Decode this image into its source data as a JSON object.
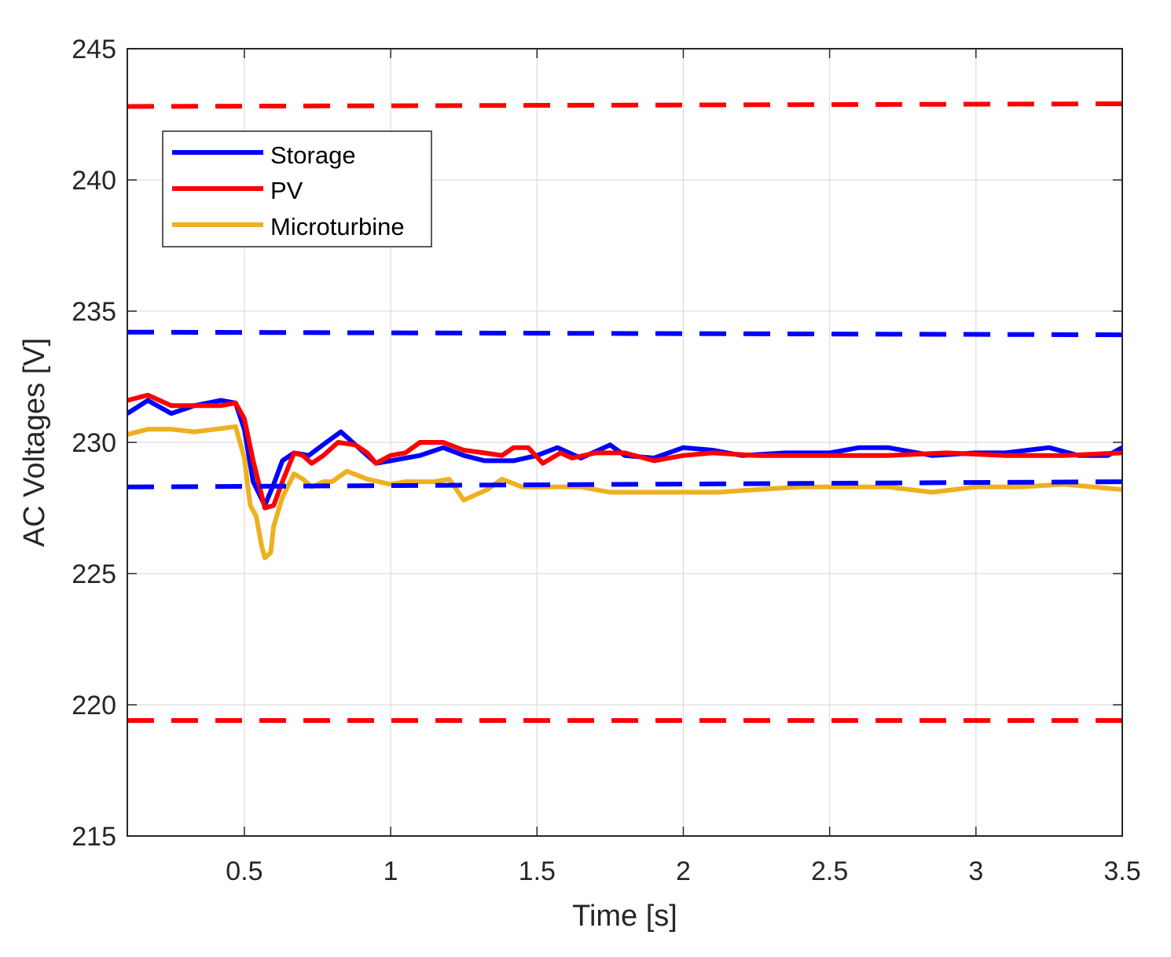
{
  "chart_data": {
    "type": "line",
    "title": "",
    "xlabel": "Time [s]",
    "ylabel": "AC Voltages [V]",
    "xlim": [
      0.1,
      3.5
    ],
    "ylim": [
      215,
      245
    ],
    "xticks": [
      0.5,
      1,
      1.5,
      2,
      2.5,
      3,
      3.5
    ],
    "xtick_labels": [
      "0.5",
      "1",
      "1.5",
      "2",
      "2.5",
      "3",
      "3.5"
    ],
    "yticks": [
      215,
      220,
      225,
      230,
      235,
      240,
      245
    ],
    "ytick_labels": [
      "215",
      "220",
      "225",
      "230",
      "235",
      "240",
      "245"
    ],
    "grid": true,
    "legend_position": "top-left",
    "series": [
      {
        "name": "Storage",
        "color": "#0000ff",
        "style": "solid",
        "x": [
          0.1,
          0.17,
          0.25,
          0.33,
          0.42,
          0.47,
          0.5,
          0.53,
          0.57,
          0.6,
          0.63,
          0.67,
          0.72,
          0.78,
          0.83,
          0.88,
          0.95,
          1.0,
          1.1,
          1.18,
          1.25,
          1.32,
          1.42,
          1.5,
          1.57,
          1.65,
          1.75,
          1.8,
          1.9,
          2.0,
          2.1,
          2.2,
          2.35,
          2.5,
          2.6,
          2.7,
          2.85,
          3.0,
          3.1,
          3.25,
          3.35,
          3.45,
          3.5
        ],
        "y": [
          231.1,
          231.6,
          231.1,
          231.4,
          231.6,
          231.5,
          230.5,
          228.5,
          227.6,
          228.4,
          229.3,
          229.6,
          229.5,
          230.0,
          230.4,
          229.9,
          229.2,
          229.3,
          229.5,
          229.8,
          229.5,
          229.3,
          229.3,
          229.5,
          229.8,
          229.4,
          229.9,
          229.5,
          229.4,
          229.8,
          229.7,
          229.5,
          229.6,
          229.6,
          229.8,
          229.8,
          229.5,
          229.6,
          229.6,
          229.8,
          229.5,
          229.5,
          229.8
        ]
      },
      {
        "name": "PV",
        "color": "#ff0000",
        "style": "solid",
        "x": [
          0.1,
          0.17,
          0.25,
          0.33,
          0.42,
          0.47,
          0.5,
          0.53,
          0.57,
          0.6,
          0.63,
          0.67,
          0.7,
          0.73,
          0.77,
          0.82,
          0.88,
          0.92,
          0.95,
          1.0,
          1.05,
          1.1,
          1.18,
          1.25,
          1.32,
          1.38,
          1.42,
          1.47,
          1.52,
          1.58,
          1.62,
          1.7,
          1.8,
          1.9,
          2.0,
          2.1,
          2.25,
          2.5,
          2.7,
          2.9,
          3.1,
          3.3,
          3.5
        ],
        "y": [
          231.6,
          231.8,
          231.4,
          231.4,
          231.4,
          231.5,
          230.9,
          229.3,
          227.5,
          227.6,
          228.5,
          229.6,
          229.5,
          229.2,
          229.5,
          230.0,
          229.9,
          229.6,
          229.2,
          229.5,
          229.6,
          230.0,
          230.0,
          229.7,
          229.6,
          229.5,
          229.8,
          229.8,
          229.2,
          229.6,
          229.4,
          229.6,
          229.6,
          229.3,
          229.5,
          229.6,
          229.5,
          229.5,
          229.5,
          229.6,
          229.5,
          229.5,
          229.6
        ]
      },
      {
        "name": "Microturbine",
        "color": "#edb120",
        "style": "solid",
        "x": [
          0.1,
          0.17,
          0.25,
          0.33,
          0.4,
          0.47,
          0.5,
          0.52,
          0.54,
          0.56,
          0.57,
          0.59,
          0.6,
          0.63,
          0.67,
          0.7,
          0.73,
          0.77,
          0.8,
          0.85,
          0.92,
          1.0,
          1.05,
          1.15,
          1.2,
          1.25,
          1.33,
          1.38,
          1.45,
          1.55,
          1.65,
          1.75,
          1.85,
          2.0,
          2.12,
          2.25,
          2.4,
          2.55,
          2.7,
          2.85,
          3.0,
          3.15,
          3.3,
          3.5
        ],
        "y": [
          230.3,
          230.5,
          230.5,
          230.4,
          230.5,
          230.6,
          229.4,
          227.6,
          227.2,
          226.0,
          225.6,
          225.8,
          226.8,
          227.9,
          228.8,
          228.6,
          228.3,
          228.5,
          228.5,
          228.9,
          228.6,
          228.4,
          228.5,
          228.5,
          228.6,
          227.8,
          228.2,
          228.6,
          228.3,
          228.3,
          228.3,
          228.1,
          228.1,
          228.1,
          228.1,
          228.2,
          228.3,
          228.3,
          228.3,
          228.1,
          228.3,
          228.3,
          228.4,
          228.2
        ]
      },
      {
        "name": "Storage limit (upper)",
        "color": "#0000ff",
        "style": "dashed",
        "x": [
          0.1,
          3.5
        ],
        "y": [
          234.2,
          234.1
        ]
      },
      {
        "name": "Storage limit (lower)",
        "color": "#0000ff",
        "style": "dashed",
        "x": [
          0.1,
          3.5
        ],
        "y": [
          228.3,
          228.5
        ]
      },
      {
        "name": "PV limit (upper)",
        "color": "#ff0000",
        "style": "dashed",
        "x": [
          0.1,
          3.5
        ],
        "y": [
          242.8,
          242.9
        ]
      },
      {
        "name": "PV limit (lower)",
        "color": "#ff0000",
        "style": "dashed",
        "x": [
          0.1,
          3.5
        ],
        "y": [
          219.4,
          219.4
        ]
      }
    ],
    "legend": [
      {
        "label": "Storage",
        "color": "#0000ff"
      },
      {
        "label": "PV",
        "color": "#ff0000"
      },
      {
        "label": "Microturbine",
        "color": "#edb120"
      }
    ]
  }
}
